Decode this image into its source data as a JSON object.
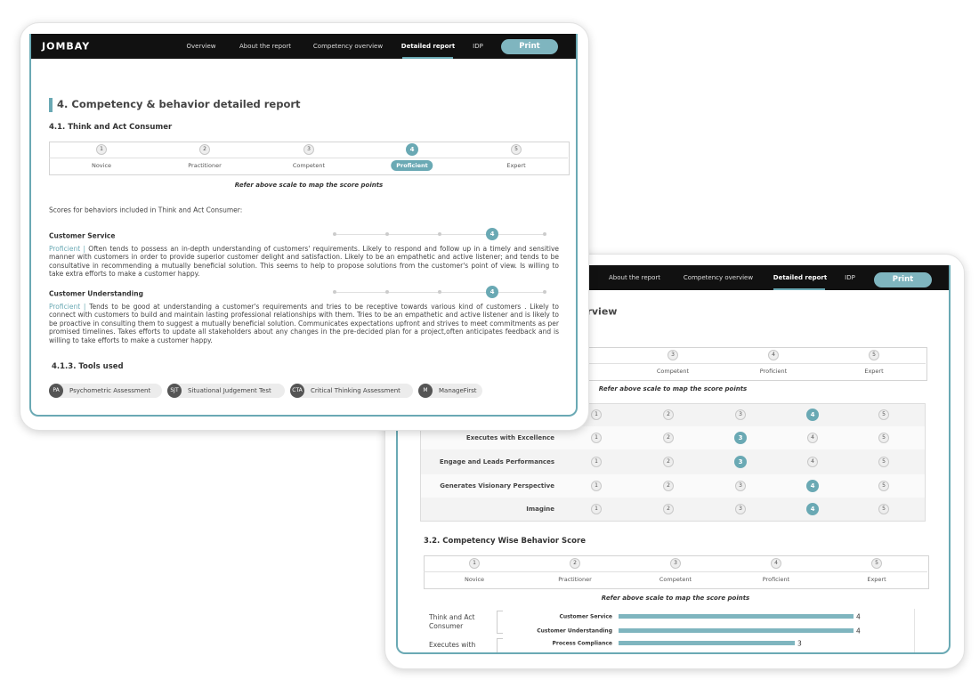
{
  "front": {
    "brand": "JOMBAY",
    "nav": [
      "Overview",
      "About the report",
      "Competency overview",
      "Detailed report",
      "IDP"
    ],
    "print": "Print",
    "section_title": "4. Competency & behavior detailed report",
    "subsection": "4.1. Think and Act Consumer",
    "scale": {
      "levels": [
        1,
        2,
        3,
        4,
        5
      ],
      "labels": [
        "Novice",
        "Practitioner",
        "Competent",
        "Proficient",
        "Expert"
      ],
      "selected": 4
    },
    "scale_note": "Refer above scale to map the score points",
    "intro": "Scores for behaviors included in Think and Act Consumer:",
    "behaviors": [
      {
        "name": "Customer Service",
        "score": 4,
        "level": "Proficient |",
        "text": "Often tends to possess an in-depth understanding of customers' requirements. Likely to respond and follow up in a timely and sensitive manner with customers in order to provide superior customer delight and satisfaction. Likely to be an empathetic and active listener; and tends to be consultative in recommending a mutually beneficial solution. This seems to help to propose solutions from the customer's point of view. Is willing to take extra efforts to make a customer happy."
      },
      {
        "name": "Customer Understanding",
        "score": 4,
        "level": "Proficient |",
        "text": "Tends to be good at understanding a customer's requirements and tries to be receptive towards various kind of customers . Likely to connect with customers to build and maintain lasting professional relationships with them. Tries to be an empathetic and active listener and is likely to be proactive in consulting them to suggest a mutually beneficial solution. Communicates expectations upfront and strives to meet commitments as per promised timelines. Takes efforts to update all stakeholders about any changes in the pre-decided plan for a project,often anticipates feedback and is willing to take efforts to make a customer happy."
      }
    ],
    "tools_title": "4.1.3. Tools used",
    "tools": [
      {
        "abbr": "PA",
        "name": "Psychometric Assessment"
      },
      {
        "abbr": "SJT",
        "name": "Situational Judgement Test"
      },
      {
        "abbr": "CTA",
        "name": "Critical Thinking Assessment"
      },
      {
        "abbr": "M",
        "name": "ManageFirst"
      }
    ]
  },
  "back": {
    "nav": [
      "About the report",
      "Competency overview",
      "Detailed report",
      "IDP"
    ],
    "print": "Print",
    "heading": "erview",
    "scale": {
      "levels": [
        3,
        4,
        5
      ],
      "labels": [
        "Competent",
        "Proficient",
        "Expert"
      ]
    },
    "scale_note": "Refer above scale to map the score points",
    "dot_levels": [
      1,
      2,
      3,
      4,
      5
    ],
    "competencies": [
      {
        "name": null,
        "score": 4
      },
      {
        "name": "Executes with Excellence",
        "score": 3
      },
      {
        "name": "Engage and Leads Performances",
        "score": 3
      },
      {
        "name": "Generates Visionary Perspective",
        "score": 4
      },
      {
        "name": "Imagine",
        "score": 4
      }
    ],
    "section2_title": "3.2. Competency Wise Behavior Score",
    "scale2": {
      "levels": [
        1,
        2,
        3,
        4,
        5
      ],
      "labels": [
        "Novice",
        "Practitioner",
        "Competent",
        "Proficient",
        "Expert"
      ]
    },
    "scale2_note": "Refer above scale to map the score points",
    "chart": {
      "type": "bar",
      "groups": [
        "Think and Act Consumer",
        "Executes with"
      ],
      "categories": [
        "Customer Service",
        "Customer Understanding",
        "Process Compliance"
      ],
      "values": [
        4,
        4,
        3
      ],
      "xlim": [
        0,
        5
      ],
      "color": "#7fb5bf"
    }
  }
}
